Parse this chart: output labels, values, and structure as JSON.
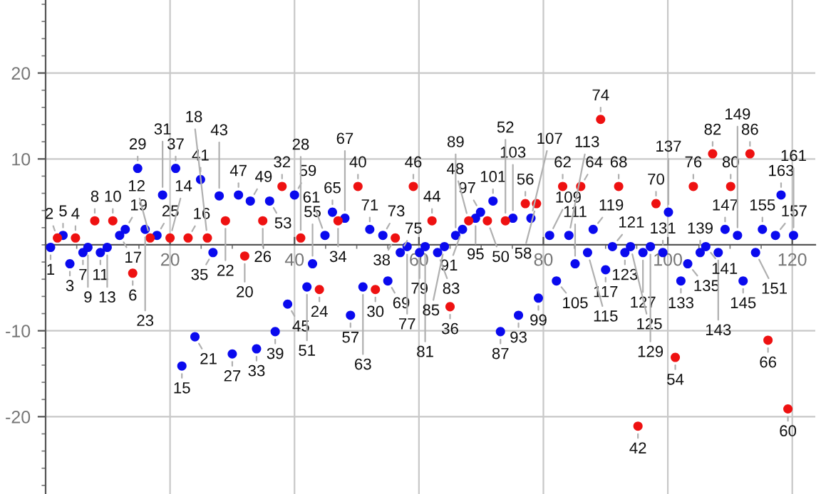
{
  "chart_data": {
    "type": "scatter",
    "xlim": [
      0,
      123.7
    ],
    "ylim": [
      -29,
      28.5
    ],
    "xticks": [
      20,
      40,
      60,
      80,
      100,
      120
    ],
    "yticks": [
      -20,
      -10,
      10,
      20
    ],
    "grid": true,
    "marker": "circle",
    "series": [
      {
        "color": "#0a0aee",
        "x": [
          0.8,
          3.9,
          2.8,
          6.0,
          6.8,
          8.8,
          9.9,
          21.9,
          11.9,
          12.8,
          24.0,
          16.0,
          17.9,
          30.0,
          14.8,
          18.8,
          33.9,
          26.9,
          20.9,
          36.9,
          24.9,
          27.9,
          38.9,
          31.0,
          32.9,
          42.0,
          36.0,
          42.9,
          49.0,
          40.0,
          44.9,
          51.0,
          46.1,
          48.1,
          55.0,
          52.1,
          54.2,
          57.0,
          58.1,
          60.1,
          61.0,
          63.0,
          64.1,
          73.1,
          65.9,
          67.0,
          76.0,
          69.1,
          69.9,
          79.2,
          71.9,
          75.1,
          82.1,
          78.0,
          81.0,
          85.1,
          84.1,
          87.1,
          90.0,
          88.0,
          91.1,
          93.1,
          94.0,
          96.0,
          97.2,
          99.2,
          102.1,
          103.2,
          100.1,
          105.2,
          106.1,
          108.1,
          112.1,
          109.2,
          111.2,
          114.1,
          115.2,
          117.3,
          120.2,
          118.2
        ],
        "values": [
          -0.3,
          -2.2,
          1.1,
          -0.9,
          -0.3,
          -0.9,
          -0.3,
          -14.1,
          1.1,
          1.8,
          -10.7,
          1.8,
          1.1,
          -12.7,
          8.9,
          5.8,
          -12.1,
          -0.9,
          8.9,
          -10.1,
          7.6,
          5.7,
          -6.9,
          5.8,
          5.1,
          -4.9,
          5.1,
          -2.2,
          -8.2,
          5.8,
          1.1,
          -4.9,
          3.8,
          3.1,
          -4.2,
          1.8,
          1.1,
          -0.9,
          -0.2,
          -0.9,
          -0.2,
          -0.9,
          -0.2,
          -10.1,
          1.1,
          1.8,
          -8.2,
          3.1,
          3.8,
          -6.2,
          5.1,
          3.1,
          -4.2,
          3.1,
          1.1,
          -2.2,
          1.1,
          -0.9,
          -2.9,
          1.8,
          -0.2,
          -0.9,
          -0.2,
          -0.9,
          -0.2,
          -0.9,
          -4.2,
          -2.2,
          3.8,
          -0.9,
          -0.2,
          -0.9,
          -4.2,
          1.8,
          1.1,
          -0.9,
          1.8,
          1.1,
          1.1,
          5.8
        ]
      },
      {
        "color": "#ee1111",
        "x": [
          1.9,
          4.8,
          14.0,
          7.9,
          10.8,
          16.8,
          20.0,
          22.9,
          26.0,
          32.0,
          28.9,
          44.0,
          34.9,
          41.0,
          53.0,
          38.0,
          47.0,
          65.0,
          56.2,
          50.2,
          95.2,
          62.1,
          59.1,
          68.0,
          71.0,
          73.9,
          101.2,
          77.1,
          78.9,
          119.3,
          83.1,
          86.0,
          116.1,
          92.1,
          98.1,
          89.2,
          104.1,
          110.1,
          107.2,
          113.2
        ],
        "values": [
          0.8,
          0.8,
          -3.3,
          2.8,
          2.8,
          0.8,
          0.8,
          0.8,
          0.8,
          -1.3,
          2.8,
          -5.2,
          2.8,
          0.8,
          -5.2,
          6.8,
          2.8,
          -7.2,
          0.8,
          6.8,
          -21.1,
          2.8,
          6.8,
          2.8,
          2.8,
          2.8,
          -13.1,
          4.8,
          4.8,
          -19.1,
          6.8,
          6.8,
          -11.1,
          6.8,
          4.8,
          14.6,
          6.8,
          6.8,
          10.6,
          10.6
        ]
      }
    ],
    "annotations": [
      {
        "text": "1",
        "x": 0.8,
        "y": -0.3
      },
      {
        "text": "2",
        "x": 1.9,
        "y": 0.8
      },
      {
        "text": "3",
        "x": 3.9,
        "y": -2.2
      },
      {
        "text": "4",
        "x": 4.8,
        "y": 0.8
      },
      {
        "text": "5",
        "x": 2.8,
        "y": 1.1
      },
      {
        "text": "6",
        "x": 14.0,
        "y": -3.3
      },
      {
        "text": "7",
        "x": 6.0,
        "y": -0.9
      },
      {
        "text": "8",
        "x": 7.9,
        "y": 2.8
      },
      {
        "text": "9",
        "x": 6.8,
        "y": -0.3
      },
      {
        "text": "10",
        "x": 10.8,
        "y": 2.8
      },
      {
        "text": "11",
        "x": 8.8,
        "y": -0.9
      },
      {
        "text": "12",
        "x": 16.8,
        "y": 0.8
      },
      {
        "text": "13",
        "x": 9.9,
        "y": -0.3
      },
      {
        "text": "14",
        "x": 20.0,
        "y": 0.8
      },
      {
        "text": "15",
        "x": 21.9,
        "y": -14.1
      },
      {
        "text": "16",
        "x": 22.9,
        "y": 0.8
      },
      {
        "text": "17",
        "x": 11.9,
        "y": 1.1
      },
      {
        "text": "18",
        "x": 26.0,
        "y": 0.8
      },
      {
        "text": "19",
        "x": 12.8,
        "y": 1.8
      },
      {
        "text": "20",
        "x": 32.0,
        "y": -1.3
      },
      {
        "text": "21",
        "x": 24.0,
        "y": -10.7
      },
      {
        "text": "22",
        "x": 28.9,
        "y": 2.8
      },
      {
        "text": "23",
        "x": 16.0,
        "y": 1.8
      },
      {
        "text": "24",
        "x": 44.0,
        "y": -5.2
      },
      {
        "text": "25",
        "x": 17.9,
        "y": 1.1
      },
      {
        "text": "26",
        "x": 34.9,
        "y": 2.8
      },
      {
        "text": "27",
        "x": 30.0,
        "y": -12.7
      },
      {
        "text": "28",
        "x": 41.0,
        "y": 0.8
      },
      {
        "text": "29",
        "x": 14.8,
        "y": 8.9
      },
      {
        "text": "30",
        "x": 53.0,
        "y": -5.2
      },
      {
        "text": "31",
        "x": 18.8,
        "y": 5.8
      },
      {
        "text": "32",
        "x": 38.0,
        "y": 6.8
      },
      {
        "text": "33",
        "x": 33.9,
        "y": -12.1
      },
      {
        "text": "34",
        "x": 47.0,
        "y": 2.8
      },
      {
        "text": "35",
        "x": 26.9,
        "y": -0.9
      },
      {
        "text": "36",
        "x": 65.0,
        "y": -7.2
      },
      {
        "text": "37",
        "x": 20.9,
        "y": 8.9
      },
      {
        "text": "38",
        "x": 56.2,
        "y": 0.8
      },
      {
        "text": "39",
        "x": 36.9,
        "y": -10.1
      },
      {
        "text": "40",
        "x": 50.2,
        "y": 6.8
      },
      {
        "text": "41",
        "x": 24.9,
        "y": 7.6
      },
      {
        "text": "42",
        "x": 95.2,
        "y": -21.1
      },
      {
        "text": "43",
        "x": 27.9,
        "y": 5.7
      },
      {
        "text": "44",
        "x": 62.1,
        "y": 2.8
      },
      {
        "text": "45",
        "x": 38.9,
        "y": -6.9
      },
      {
        "text": "46",
        "x": 59.1,
        "y": 6.8
      },
      {
        "text": "47",
        "x": 31.0,
        "y": 5.8
      },
      {
        "text": "48",
        "x": 68.0,
        "y": 2.8
      },
      {
        "text": "49",
        "x": 32.9,
        "y": 5.1
      },
      {
        "text": "50",
        "x": 71.0,
        "y": 2.8
      },
      {
        "text": "51",
        "x": 42.0,
        "y": -4.9
      },
      {
        "text": "52",
        "x": 73.9,
        "y": 2.8
      },
      {
        "text": "53",
        "x": 36.0,
        "y": 5.1
      },
      {
        "text": "54",
        "x": 101.2,
        "y": -13.1
      },
      {
        "text": "55",
        "x": 42.9,
        "y": -2.2
      },
      {
        "text": "56",
        "x": 77.1,
        "y": 4.8
      },
      {
        "text": "57",
        "x": 49.0,
        "y": -8.2
      },
      {
        "text": "58",
        "x": 78.9,
        "y": 4.8
      },
      {
        "text": "59",
        "x": 40.0,
        "y": 5.8
      },
      {
        "text": "60",
        "x": 119.3,
        "y": -19.1
      },
      {
        "text": "61",
        "x": 44.9,
        "y": 1.1
      },
      {
        "text": "62",
        "x": 83.1,
        "y": 6.8
      },
      {
        "text": "63",
        "x": 51.0,
        "y": -4.9
      },
      {
        "text": "64",
        "x": 86.0,
        "y": 6.8
      },
      {
        "text": "65",
        "x": 46.1,
        "y": 3.8
      },
      {
        "text": "66",
        "x": 116.1,
        "y": -11.1
      },
      {
        "text": "67",
        "x": 48.1,
        "y": 3.1
      },
      {
        "text": "68",
        "x": 92.1,
        "y": 6.8
      },
      {
        "text": "69",
        "x": 55.0,
        "y": -4.2
      },
      {
        "text": "70",
        "x": 98.1,
        "y": 4.8
      },
      {
        "text": "71",
        "x": 52.1,
        "y": 1.8
      },
      {
        "text": "73",
        "x": 54.2,
        "y": 1.1
      },
      {
        "text": "74",
        "x": 89.2,
        "y": 14.6
      },
      {
        "text": "75",
        "x": 57.0,
        "y": -0.9
      },
      {
        "text": "76",
        "x": 104.1,
        "y": 6.8
      },
      {
        "text": "77",
        "x": 58.1,
        "y": -0.2
      },
      {
        "text": "79",
        "x": 60.1,
        "y": -0.9
      },
      {
        "text": "80",
        "x": 110.1,
        "y": 6.8
      },
      {
        "text": "81",
        "x": 61.0,
        "y": -0.2
      },
      {
        "text": "82",
        "x": 107.2,
        "y": 10.6
      },
      {
        "text": "83",
        "x": 63.0,
        "y": -0.9
      },
      {
        "text": "85",
        "x": 64.1,
        "y": -0.2
      },
      {
        "text": "86",
        "x": 113.2,
        "y": 10.6
      },
      {
        "text": "87",
        "x": 73.1,
        "y": -10.1
      },
      {
        "text": "89",
        "x": 65.9,
        "y": 1.1
      },
      {
        "text": "91",
        "x": 67.0,
        "y": 1.8
      },
      {
        "text": "93",
        "x": 76.0,
        "y": -8.2
      },
      {
        "text": "95",
        "x": 69.1,
        "y": 3.1
      },
      {
        "text": "97",
        "x": 69.9,
        "y": 3.8
      },
      {
        "text": "99",
        "x": 79.2,
        "y": -6.2
      },
      {
        "text": "101",
        "x": 71.9,
        "y": 5.1
      },
      {
        "text": "103",
        "x": 75.1,
        "y": 3.1
      },
      {
        "text": "105",
        "x": 82.1,
        "y": -4.2
      },
      {
        "text": "107",
        "x": 78.0,
        "y": 3.1
      },
      {
        "text": "109",
        "x": 81.0,
        "y": 1.1
      },
      {
        "text": "111",
        "x": 85.1,
        "y": -2.2
      },
      {
        "text": "113",
        "x": 84.1,
        "y": 1.1
      },
      {
        "text": "115",
        "x": 87.1,
        "y": -0.9
      },
      {
        "text": "117",
        "x": 90.0,
        "y": -2.9
      },
      {
        "text": "119",
        "x": 88.0,
        "y": 1.8
      },
      {
        "text": "121",
        "x": 91.1,
        "y": -0.2
      },
      {
        "text": "123",
        "x": 93.1,
        "y": -0.9
      },
      {
        "text": "125",
        "x": 94.0,
        "y": -0.2
      },
      {
        "text": "127",
        "x": 96.0,
        "y": -0.9
      },
      {
        "text": "129",
        "x": 97.2,
        "y": -0.2
      },
      {
        "text": "131",
        "x": 99.2,
        "y": -0.9
      },
      {
        "text": "133",
        "x": 102.1,
        "y": -4.2
      },
      {
        "text": "135",
        "x": 103.2,
        "y": -2.2
      },
      {
        "text": "137",
        "x": 100.1,
        "y": 3.8
      },
      {
        "text": "139",
        "x": 105.2,
        "y": -0.9
      },
      {
        "text": "141",
        "x": 106.1,
        "y": -0.2
      },
      {
        "text": "143",
        "x": 108.1,
        "y": -0.9
      },
      {
        "text": "145",
        "x": 112.1,
        "y": -4.2
      },
      {
        "text": "147",
        "x": 109.2,
        "y": 1.8
      },
      {
        "text": "149",
        "x": 111.2,
        "y": 1.1
      },
      {
        "text": "151",
        "x": 114.1,
        "y": -0.9
      },
      {
        "text": "155",
        "x": 115.2,
        "y": 1.8
      },
      {
        "text": "157",
        "x": 117.3,
        "y": 1.1
      },
      {
        "text": "161",
        "x": 120.2,
        "y": 1.1
      },
      {
        "text": "163",
        "x": 118.2,
        "y": 5.8
      }
    ]
  }
}
